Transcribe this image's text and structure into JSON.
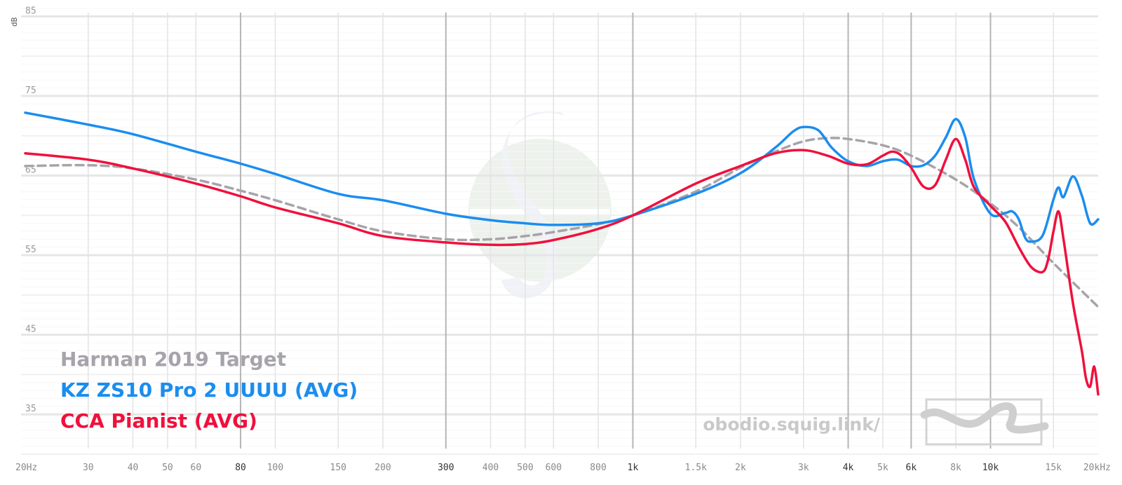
{
  "chart_data": {
    "type": "line",
    "ylabel": "dB",
    "x_scale": "log",
    "xlim": [
      20,
      20000
    ],
    "ylim": [
      30,
      86
    ],
    "y_ticks": [
      35,
      45,
      55,
      65,
      75,
      85
    ],
    "y_tick_labels": [
      "35",
      "45",
      "55",
      "65",
      "75",
      "85"
    ],
    "x_ticks": [
      20,
      30,
      40,
      50,
      60,
      80,
      100,
      150,
      200,
      300,
      400,
      500,
      600,
      800,
      1000,
      1500,
      2000,
      3000,
      4000,
      5000,
      6000,
      8000,
      10000,
      15000,
      20000
    ],
    "x_tick_labels": [
      "20Hz",
      "30",
      "40",
      "50",
      "60",
      "80",
      "100",
      "150",
      "200",
      "300",
      "400",
      "500",
      "600",
      "800",
      "1k",
      "1.5k",
      "2k",
      "3k",
      "4k",
      "5k",
      "6k",
      "8k",
      "10k",
      "15k",
      "20kHz"
    ],
    "x_tick_bold": [
      80,
      300,
      1000,
      4000,
      6000,
      10000
    ],
    "grid": true,
    "legend_position": "bottom-left",
    "series": [
      {
        "name": "Harman 2019 Target",
        "color": "#a7a3aa",
        "dashed": true,
        "points": [
          [
            20,
            66.2
          ],
          [
            30,
            66.3
          ],
          [
            40,
            65.9
          ],
          [
            60,
            64.5
          ],
          [
            80,
            63.1
          ],
          [
            100,
            61.9
          ],
          [
            150,
            59.5
          ],
          [
            200,
            58.0
          ],
          [
            300,
            57.0
          ],
          [
            400,
            57.0
          ],
          [
            500,
            57.4
          ],
          [
            600,
            57.9
          ],
          [
            800,
            58.9
          ],
          [
            1000,
            60.0
          ],
          [
            1500,
            63.0
          ],
          [
            2000,
            66.0
          ],
          [
            2500,
            68.0
          ],
          [
            3000,
            69.3
          ],
          [
            3500,
            69.7
          ],
          [
            4000,
            69.6
          ],
          [
            5000,
            68.8
          ],
          [
            6000,
            67.5
          ],
          [
            8000,
            64.5
          ],
          [
            10000,
            61.5
          ],
          [
            12000,
            58.5
          ],
          [
            15000,
            54.0
          ],
          [
            20000,
            48.5
          ]
        ]
      },
      {
        "name": "KZ ZS10 Pro 2 UUUU (AVG)",
        "color": "#1a8df0",
        "dashed": false,
        "points": [
          [
            20,
            72.9
          ],
          [
            30,
            71.4
          ],
          [
            40,
            70.2
          ],
          [
            60,
            68.0
          ],
          [
            80,
            66.5
          ],
          [
            100,
            65.2
          ],
          [
            150,
            62.7
          ],
          [
            200,
            61.9
          ],
          [
            300,
            60.2
          ],
          [
            400,
            59.4
          ],
          [
            500,
            59.0
          ],
          [
            600,
            58.8
          ],
          [
            800,
            59.0
          ],
          [
            1000,
            60.0
          ],
          [
            1500,
            62.7
          ],
          [
            2000,
            65.3
          ],
          [
            2500,
            68.5
          ],
          [
            2800,
            70.5
          ],
          [
            3000,
            71.1
          ],
          [
            3300,
            70.7
          ],
          [
            3600,
            68.5
          ],
          [
            4000,
            66.8
          ],
          [
            4500,
            66.2
          ],
          [
            5000,
            66.8
          ],
          [
            5500,
            67.0
          ],
          [
            6000,
            66.2
          ],
          [
            6500,
            66.3
          ],
          [
            7000,
            67.5
          ],
          [
            7500,
            69.8
          ],
          [
            8000,
            72.1
          ],
          [
            8500,
            69.8
          ],
          [
            9000,
            64.5
          ],
          [
            10000,
            60.2
          ],
          [
            11000,
            60.3
          ],
          [
            11500,
            60.5
          ],
          [
            12000,
            59.5
          ],
          [
            12500,
            57.2
          ],
          [
            13000,
            56.7
          ],
          [
            14000,
            57.5
          ],
          [
            15000,
            62.0
          ],
          [
            15500,
            63.5
          ],
          [
            16000,
            62.3
          ],
          [
            17000,
            64.9
          ],
          [
            18000,
            62.5
          ],
          [
            19000,
            59.0
          ],
          [
            20000,
            59.5
          ]
        ]
      },
      {
        "name": "CCA Pianist (AVG)",
        "color": "#f0103c",
        "dashed": false,
        "points": [
          [
            20,
            67.8
          ],
          [
            30,
            67.0
          ],
          [
            40,
            65.9
          ],
          [
            60,
            64.0
          ],
          [
            80,
            62.4
          ],
          [
            100,
            61.0
          ],
          [
            150,
            59.0
          ],
          [
            200,
            57.4
          ],
          [
            300,
            56.6
          ],
          [
            400,
            56.3
          ],
          [
            500,
            56.4
          ],
          [
            600,
            56.9
          ],
          [
            800,
            58.3
          ],
          [
            1000,
            60.0
          ],
          [
            1500,
            64.0
          ],
          [
            2000,
            66.2
          ],
          [
            2500,
            67.8
          ],
          [
            3000,
            68.2
          ],
          [
            3500,
            67.5
          ],
          [
            4000,
            66.5
          ],
          [
            4500,
            66.4
          ],
          [
            5000,
            67.5
          ],
          [
            5300,
            68.0
          ],
          [
            5600,
            67.6
          ],
          [
            6000,
            66.0
          ],
          [
            6500,
            63.6
          ],
          [
            7000,
            63.8
          ],
          [
            7500,
            67.0
          ],
          [
            8000,
            69.6
          ],
          [
            8500,
            67.0
          ],
          [
            9000,
            63.5
          ],
          [
            10000,
            61.2
          ],
          [
            11000,
            59.2
          ],
          [
            12000,
            56.0
          ],
          [
            13000,
            53.5
          ],
          [
            14000,
            52.9
          ],
          [
            14500,
            54.5
          ],
          [
            15000,
            58.0
          ],
          [
            15500,
            60.5
          ],
          [
            16000,
            57.0
          ],
          [
            17000,
            49.0
          ],
          [
            18000,
            43.0
          ],
          [
            18500,
            39.5
          ],
          [
            19000,
            38.5
          ],
          [
            19500,
            41.0
          ],
          [
            20000,
            37.5
          ]
        ]
      }
    ],
    "watermark": "obodio.squig.link/"
  }
}
